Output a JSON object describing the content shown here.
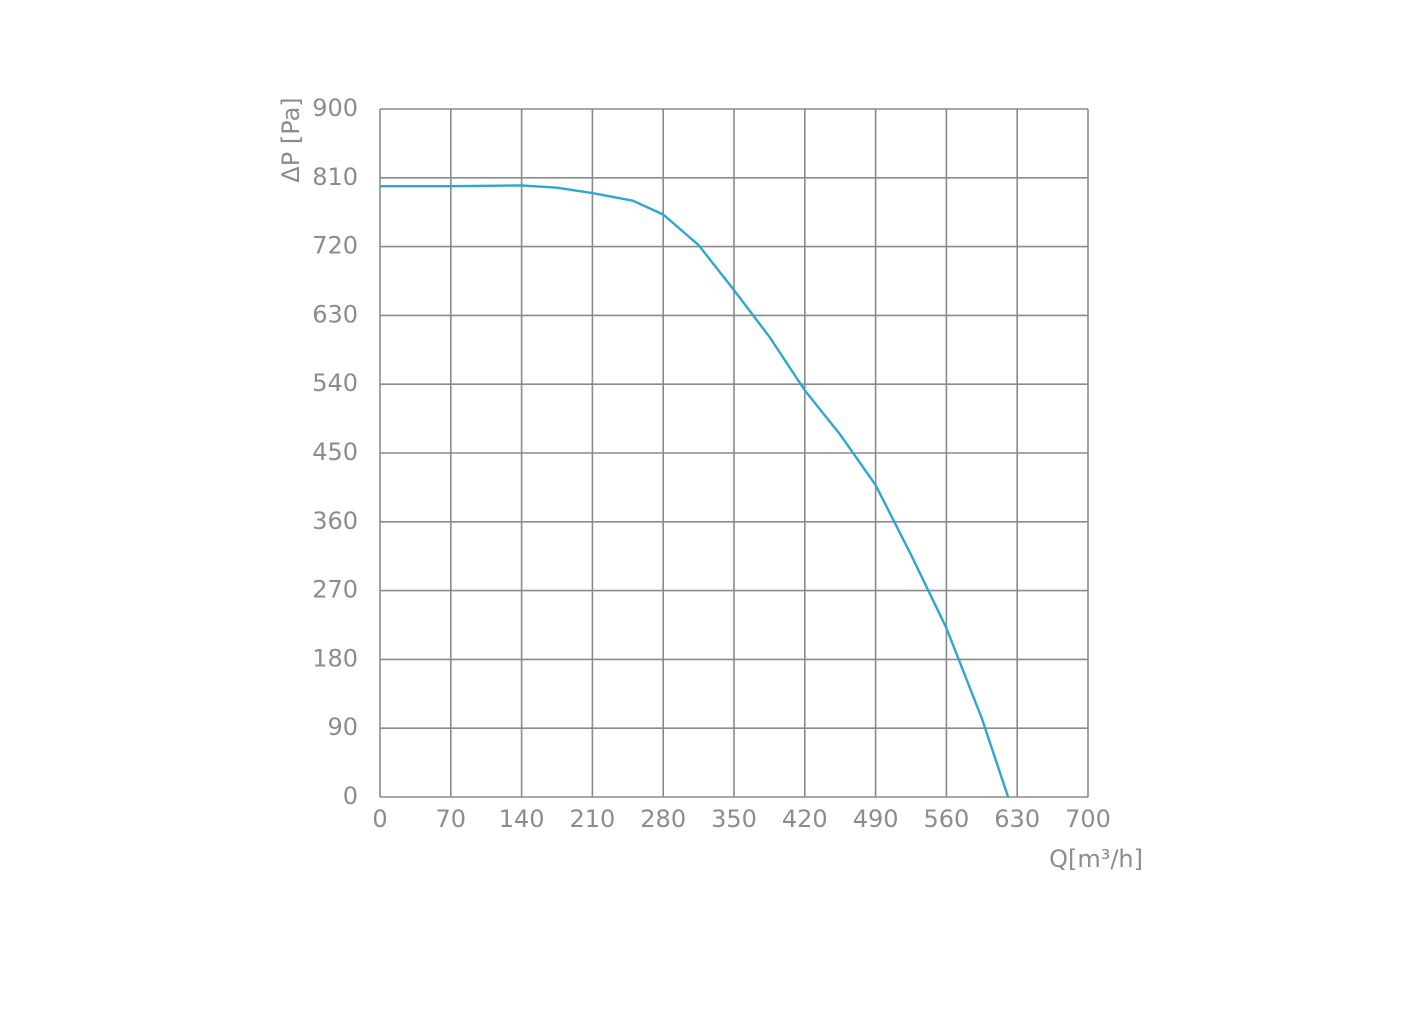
{
  "chart_data": {
    "type": "line",
    "x_label": "Q[m³/h]",
    "y_label": "ΔP [Pa]",
    "x": [
      0,
      70,
      140,
      175,
      210,
      250,
      280,
      315,
      350,
      385,
      420,
      455,
      490,
      525,
      560,
      595,
      621
    ],
    "series": [
      {
        "name": "ΔP",
        "color": "#2fa6d0",
        "values": [
          799,
          799,
          800,
          797,
          790,
          780,
          762,
          722,
          663,
          602,
          532,
          474,
          408,
          317,
          221,
          103,
          0
        ]
      }
    ],
    "xlim": [
      0,
      700
    ],
    "xticks": [
      0,
      70,
      140,
      210,
      280,
      350,
      420,
      490,
      560,
      630,
      700
    ],
    "ylim": [
      0,
      900
    ],
    "yticks": [
      0,
      90,
      180,
      270,
      360,
      450,
      540,
      630,
      720,
      810,
      900
    ],
    "grid": true
  }
}
